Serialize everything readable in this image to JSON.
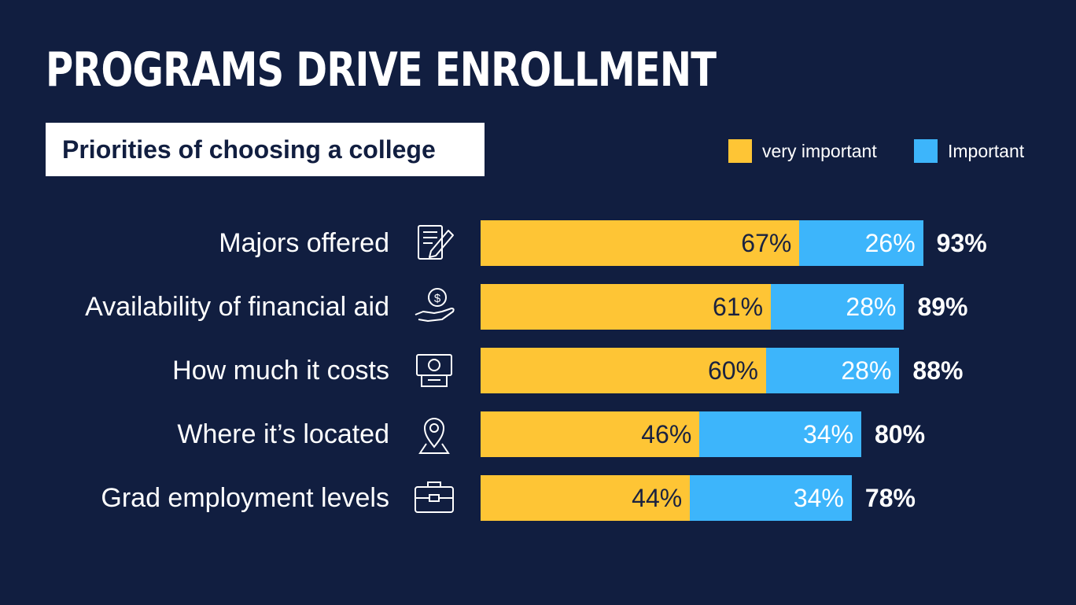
{
  "title": "PROGRAMS DRIVE ENROLLMENT",
  "subtitle": "Priorities of choosing a college",
  "legend": [
    {
      "label": "very important",
      "color": "#fec535"
    },
    {
      "label": "Important",
      "color": "#3db5fb"
    }
  ],
  "chart_data": {
    "type": "bar",
    "orientation": "horizontal",
    "stacked": true,
    "categories": [
      "Majors offered",
      "Availability of financial aid",
      "How much it costs",
      "Where it’s located",
      "Grad employment levels"
    ],
    "icons": [
      "document-pencil-icon",
      "hand-dollar-icon",
      "cash-icon",
      "location-pin-icon",
      "briefcase-icon"
    ],
    "series": [
      {
        "name": "very important",
        "values": [
          67,
          61,
          60,
          46,
          44
        ],
        "labels": [
          "67%",
          "61%",
          "60%",
          "46%",
          "44%"
        ],
        "color": "#fec535"
      },
      {
        "name": "Important",
        "values": [
          26,
          28,
          28,
          34,
          34
        ],
        "labels": [
          "26%",
          "28%",
          "28%",
          "34%",
          "34%"
        ],
        "color": "#3db5fb"
      }
    ],
    "totals": [
      "93%",
      "89%",
      "88%",
      "80%",
      "78%"
    ],
    "xlim": [
      0,
      100
    ],
    "grid": false,
    "legend_position": "top-right"
  }
}
